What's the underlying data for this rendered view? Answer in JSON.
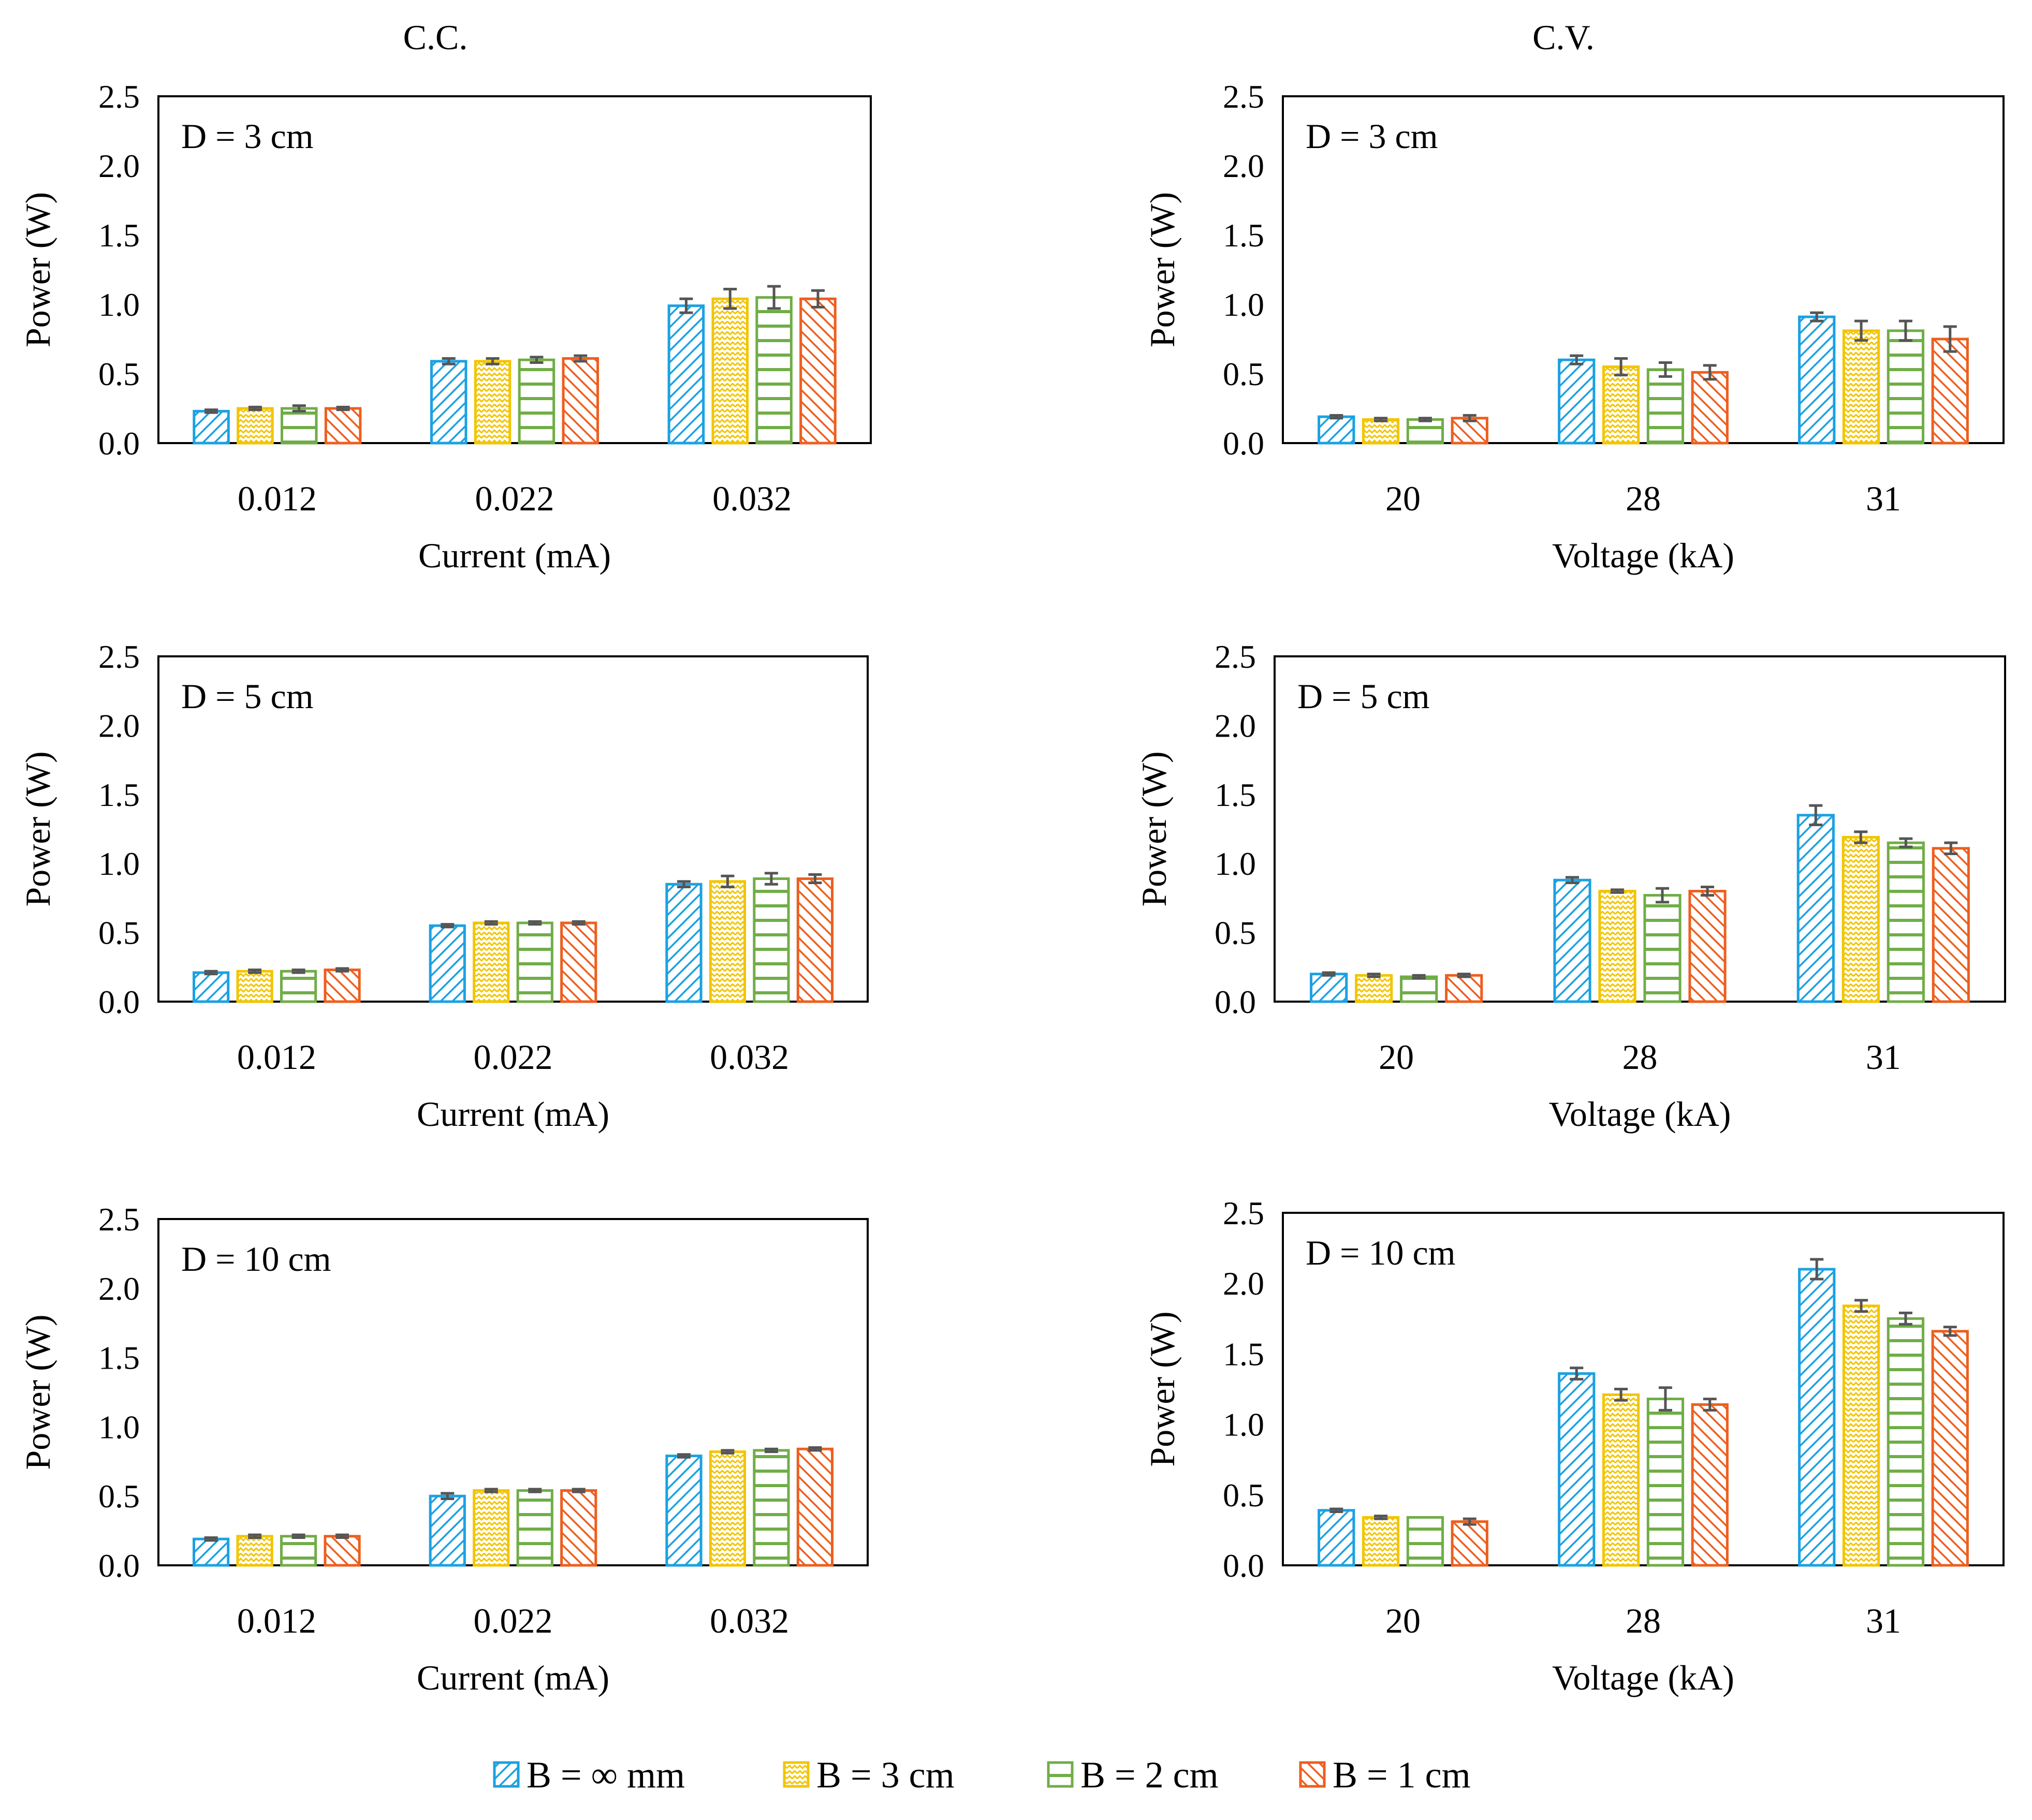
{
  "figure": {
    "columns": [
      "C.C.",
      "C.V."
    ],
    "legend": [
      {
        "label": "B = ∞ mm",
        "color": "#1BA1E2",
        "pattern": "diag-up"
      },
      {
        "label": "B = 3 cm",
        "color": "#F2C500",
        "pattern": "zigzag"
      },
      {
        "label": "B = 2 cm",
        "color": "#70AD47",
        "pattern": "horizontal"
      },
      {
        "label": "B = 1 cm",
        "color": "#ED5F1F",
        "pattern": "diag-down"
      }
    ],
    "error_bar_color": "#555555"
  },
  "chart_data": [
    {
      "type": "bar",
      "column": "C.C.",
      "annotation": "D = 3 cm",
      "xlabel": "Current (mA)",
      "ylabel": "Power (W)",
      "ylim": [
        0,
        2.5
      ],
      "yticks": [
        "0.0",
        "0.5",
        "1.0",
        "1.5",
        "2.0",
        "2.5"
      ],
      "categories": [
        "0.012",
        "0.022",
        "0.032"
      ],
      "series": [
        {
          "name": "B = ∞ mm",
          "values": [
            0.23,
            0.59,
            0.99
          ],
          "errors": [
            0.01,
            0.02,
            0.05
          ]
        },
        {
          "name": "B = 3 cm",
          "values": [
            0.25,
            0.59,
            1.04
          ],
          "errors": [
            0.01,
            0.02,
            0.07
          ]
        },
        {
          "name": "B = 2 cm",
          "values": [
            0.25,
            0.6,
            1.05
          ],
          "errors": [
            0.02,
            0.02,
            0.08
          ]
        },
        {
          "name": "B = 1 cm",
          "values": [
            0.25,
            0.61,
            1.04
          ],
          "errors": [
            0.01,
            0.02,
            0.06
          ]
        }
      ]
    },
    {
      "type": "bar",
      "column": "C.V.",
      "annotation": "D = 3 cm",
      "xlabel": "Voltage (kA)",
      "ylabel": "Power (W)",
      "ylim": [
        0,
        2.5
      ],
      "yticks": [
        "0.0",
        "0.5",
        "1.0",
        "1.5",
        "2.0",
        "2.5"
      ],
      "categories": [
        "20",
        "28",
        "31"
      ],
      "series": [
        {
          "name": "B = ∞ mm",
          "values": [
            0.19,
            0.6,
            0.91
          ],
          "errors": [
            0.01,
            0.03,
            0.03
          ]
        },
        {
          "name": "B = 3 cm",
          "values": [
            0.17,
            0.55,
            0.81
          ],
          "errors": [
            0.01,
            0.06,
            0.07
          ]
        },
        {
          "name": "B = 2 cm",
          "values": [
            0.17,
            0.53,
            0.81
          ],
          "errors": [
            0.01,
            0.05,
            0.07
          ]
        },
        {
          "name": "B = 1 cm",
          "values": [
            0.18,
            0.51,
            0.75
          ],
          "errors": [
            0.02,
            0.05,
            0.09
          ]
        }
      ]
    },
    {
      "type": "bar",
      "column": "C.C.",
      "annotation": "D = 5 cm",
      "xlabel": "Current (mA)",
      "ylabel": "Power (W)",
      "ylim": [
        0,
        2.5
      ],
      "yticks": [
        "0.0",
        "0.5",
        "1.0",
        "1.5",
        "2.0",
        "2.5"
      ],
      "categories": [
        "0.012",
        "0.022",
        "0.032"
      ],
      "series": [
        {
          "name": "B = ∞ mm",
          "values": [
            0.21,
            0.55,
            0.85
          ],
          "errors": [
            0.01,
            0.01,
            0.02
          ]
        },
        {
          "name": "B = 3 cm",
          "values": [
            0.22,
            0.57,
            0.87
          ],
          "errors": [
            0.01,
            0.01,
            0.04
          ]
        },
        {
          "name": "B = 2 cm",
          "values": [
            0.22,
            0.57,
            0.89
          ],
          "errors": [
            0.01,
            0.01,
            0.04
          ]
        },
        {
          "name": "B = 1 cm",
          "values": [
            0.23,
            0.57,
            0.89
          ],
          "errors": [
            0.01,
            0.01,
            0.03
          ]
        }
      ]
    },
    {
      "type": "bar",
      "column": "C.V.",
      "annotation": "D = 5 cm",
      "xlabel": "Voltage (kA)",
      "ylabel": "Power (W)",
      "ylim": [
        0,
        2.5
      ],
      "yticks": [
        "0.0",
        "0.5",
        "1.0",
        "1.5",
        "2.0",
        "2.5"
      ],
      "categories": [
        "20",
        "28",
        "31"
      ],
      "series": [
        {
          "name": "B = ∞ mm",
          "values": [
            0.2,
            0.88,
            1.35
          ],
          "errors": [
            0.01,
            0.02,
            0.07
          ]
        },
        {
          "name": "B = 3 cm",
          "values": [
            0.19,
            0.8,
            1.19
          ],
          "errors": [
            0.01,
            0.01,
            0.04
          ]
        },
        {
          "name": "B = 2 cm",
          "values": [
            0.18,
            0.77,
            1.15
          ],
          "errors": [
            0.01,
            0.05,
            0.03
          ]
        },
        {
          "name": "B = 1 cm",
          "values": [
            0.19,
            0.8,
            1.11
          ],
          "errors": [
            0.01,
            0.03,
            0.04
          ]
        }
      ]
    },
    {
      "type": "bar",
      "column": "C.C.",
      "annotation": "D = 10 cm",
      "xlabel": "Current (mA)",
      "ylabel": "Power (W)",
      "ylim": [
        0,
        2.5
      ],
      "yticks": [
        "0.0",
        "0.5",
        "1.0",
        "1.5",
        "2.0",
        "2.5"
      ],
      "categories": [
        "0.012",
        "0.022",
        "0.032"
      ],
      "series": [
        {
          "name": "B = ∞ mm",
          "values": [
            0.19,
            0.5,
            0.79
          ],
          "errors": [
            0.01,
            0.02,
            0.01
          ]
        },
        {
          "name": "B = 3 cm",
          "values": [
            0.21,
            0.54,
            0.82
          ],
          "errors": [
            0.01,
            0.01,
            0.01
          ]
        },
        {
          "name": "B = 2 cm",
          "values": [
            0.21,
            0.54,
            0.83
          ],
          "errors": [
            0.01,
            0.01,
            0.01
          ]
        },
        {
          "name": "B = 1 cm",
          "values": [
            0.21,
            0.54,
            0.84
          ],
          "errors": [
            0.01,
            0.01,
            0.01
          ]
        }
      ]
    },
    {
      "type": "bar",
      "column": "C.V.",
      "annotation": "D = 10 cm",
      "xlabel": "Voltage (kA)",
      "ylabel": "Power (W)",
      "ylim": [
        0,
        2.5
      ],
      "yticks": [
        "0.0",
        "0.5",
        "1.0",
        "1.5",
        "2.0",
        "2.5"
      ],
      "categories": [
        "20",
        "28",
        "31"
      ],
      "series": [
        {
          "name": "B = ∞ mm",
          "values": [
            0.39,
            1.36,
            2.1
          ],
          "errors": [
            0.01,
            0.04,
            0.07
          ]
        },
        {
          "name": "B = 3 cm",
          "values": [
            0.34,
            1.21,
            1.84
          ],
          "errors": [
            0.01,
            0.04,
            0.04
          ]
        },
        {
          "name": "B = 2 cm",
          "values": [
            0.34,
            1.18,
            1.75
          ],
          "errors": [
            0.0,
            0.08,
            0.04
          ]
        },
        {
          "name": "B = 1 cm",
          "values": [
            0.31,
            1.14,
            1.66
          ],
          "errors": [
            0.02,
            0.04,
            0.03
          ]
        }
      ]
    }
  ]
}
